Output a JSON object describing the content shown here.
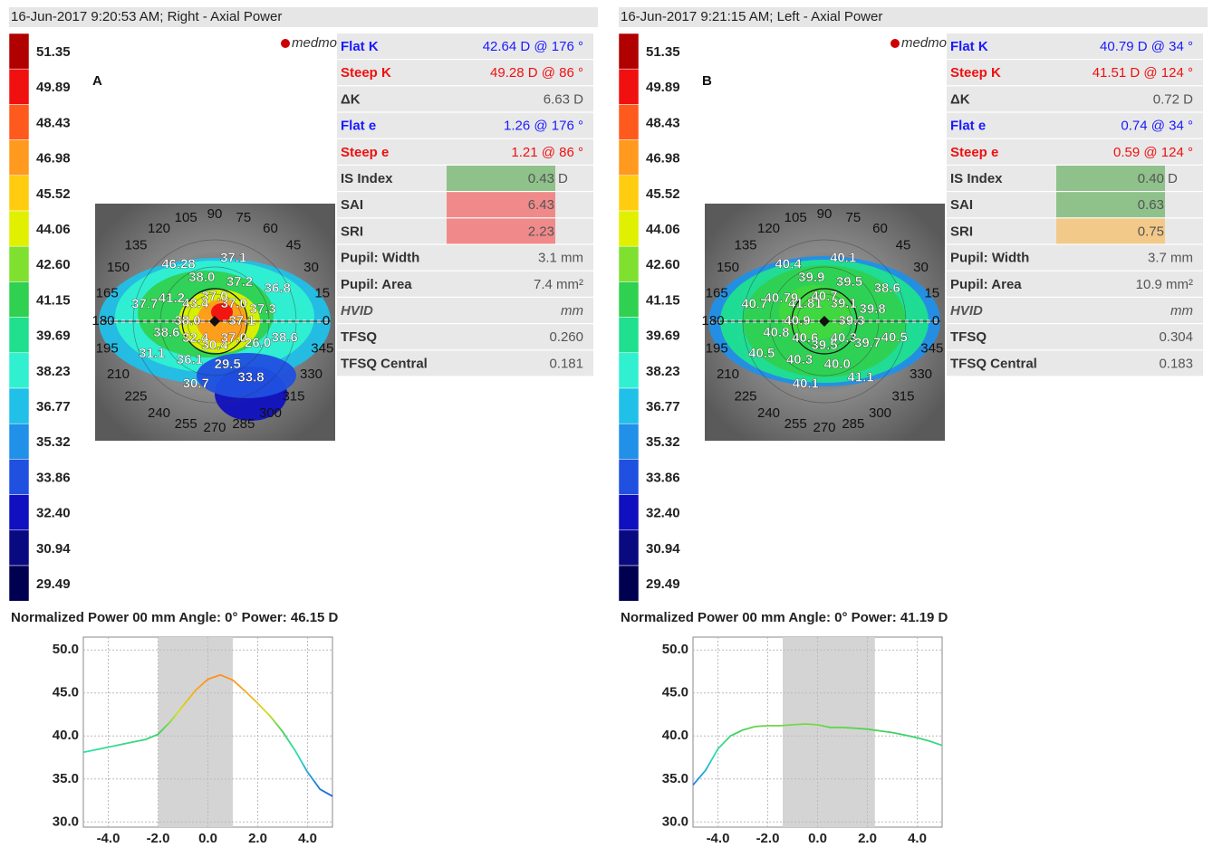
{
  "panels": [
    {
      "header": "16-Jun-2017 9:20:53 AM; Right - Axial Power",
      "letter": "A",
      "logo": "medmont",
      "scale": [
        {
          "label": "51.35",
          "color": "#b00000"
        },
        {
          "label": "49.89",
          "color": "#f01010"
        },
        {
          "label": "48.43",
          "color": "#ff5a1e"
        },
        {
          "label": "46.98",
          "color": "#ff9a1e"
        },
        {
          "label": "45.52",
          "color": "#ffcc10"
        },
        {
          "label": "44.06",
          "color": "#e0f000"
        },
        {
          "label": "42.60",
          "color": "#80e030"
        },
        {
          "label": "41.15",
          "color": "#30d050"
        },
        {
          "label": "39.69",
          "color": "#20e090"
        },
        {
          "label": "38.23",
          "color": "#30f0d0"
        },
        {
          "label": "36.77",
          "color": "#20c0e8"
        },
        {
          "label": "35.32",
          "color": "#2090e8"
        },
        {
          "label": "33.86",
          "color": "#2050e0"
        },
        {
          "label": "32.40",
          "color": "#1010c0"
        },
        {
          "label": "30.94",
          "color": "#0a0a80"
        },
        {
          "label": "29.49",
          "color": "#000050"
        }
      ],
      "rows": [
        {
          "label": "Flat K",
          "value": "42.64 D @ 176 °",
          "color": "#1a1aff"
        },
        {
          "label": "Steep K",
          "value": "49.28 D @  86 °",
          "color": "#f01010"
        },
        {
          "label": "ΔK",
          "value": "6.63 D",
          "color": "#333333"
        },
        {
          "label": "Flat e",
          "value": "1.26 @ 176 °",
          "color": "#1a1aff"
        },
        {
          "label": "Steep e",
          "value": "1.21 @  86 °",
          "color": "#f01010"
        },
        {
          "label": "IS Index",
          "value": "0.43",
          "unit": "D",
          "color": "#333333",
          "highlight": "#8fc18a"
        },
        {
          "label": "SAI",
          "value": "6.43",
          "color": "#333333",
          "highlight": "#f08a8a"
        },
        {
          "label": "SRI",
          "value": "2.23",
          "color": "#333333",
          "highlight": "#f08a8a"
        },
        {
          "label": "Pupil: Width",
          "value": "3.1 mm",
          "color": "#333333"
        },
        {
          "label": "Pupil: Area",
          "value": "7.4 mm²",
          "color": "#333333"
        },
        {
          "label": "HVID",
          "value": "mm",
          "color": "#555555",
          "italic": true
        },
        {
          "label": "TFSQ",
          "value": "0.260",
          "color": "#333333"
        },
        {
          "label": "TFSQ Central",
          "value": "0.181",
          "color": "#333333"
        }
      ],
      "map": {
        "angles": [
          0,
          15,
          30,
          45,
          60,
          75,
          90,
          105,
          120,
          135,
          150,
          165,
          180,
          195,
          210,
          225,
          240,
          255,
          270,
          285,
          300,
          315,
          330,
          345
        ],
        "values": [
          "37.1",
          "37.3",
          "36.8",
          "37.0",
          "37.2",
          "37.1",
          "37.0",
          "38.0",
          "46.28",
          "43.4",
          "41.2",
          "37.7",
          "38.0",
          "38.6",
          "31.1",
          "32.4",
          "36.1",
          "30.7",
          "30.4",
          "29.5",
          "33.8",
          "37.0",
          "26.0",
          "38.6"
        ]
      },
      "caption": "Normalized Power 00 mm Angle: 0° Power:  46.15 D"
    },
    {
      "header": "16-Jun-2017 9:21:15 AM; Left - Axial Power",
      "letter": "B",
      "logo": "medmont",
      "scale": [
        {
          "label": "51.35",
          "color": "#b00000"
        },
        {
          "label": "49.89",
          "color": "#f01010"
        },
        {
          "label": "48.43",
          "color": "#ff5a1e"
        },
        {
          "label": "46.98",
          "color": "#ff9a1e"
        },
        {
          "label": "45.52",
          "color": "#ffcc10"
        },
        {
          "label": "44.06",
          "color": "#e0f000"
        },
        {
          "label": "42.60",
          "color": "#80e030"
        },
        {
          "label": "41.15",
          "color": "#30d050"
        },
        {
          "label": "39.69",
          "color": "#20e090"
        },
        {
          "label": "38.23",
          "color": "#30f0d0"
        },
        {
          "label": "36.77",
          "color": "#20c0e8"
        },
        {
          "label": "35.32",
          "color": "#2090e8"
        },
        {
          "label": "33.86",
          "color": "#2050e0"
        },
        {
          "label": "32.40",
          "color": "#1010c0"
        },
        {
          "label": "30.94",
          "color": "#0a0a80"
        },
        {
          "label": "29.49",
          "color": "#000050"
        }
      ],
      "rows": [
        {
          "label": "Flat K",
          "value": "40.79 D @  34 °",
          "color": "#1a1aff"
        },
        {
          "label": "Steep K",
          "value": "41.51 D @ 124 °",
          "color": "#f01010"
        },
        {
          "label": "ΔK",
          "value": "0.72 D",
          "color": "#333333"
        },
        {
          "label": "Flat e",
          "value": "0.74 @  34 °",
          "color": "#1a1aff"
        },
        {
          "label": "Steep e",
          "value": "0.59 @ 124 °",
          "color": "#f01010"
        },
        {
          "label": "IS Index",
          "value": "0.40",
          "unit": "D",
          "color": "#333333",
          "highlight": "#8fc18a"
        },
        {
          "label": "SAI",
          "value": "0.63",
          "color": "#333333",
          "highlight": "#8fc18a"
        },
        {
          "label": "SRI",
          "value": "0.75",
          "color": "#333333",
          "highlight": "#f3c98a"
        },
        {
          "label": "Pupil: Width",
          "value": "3.7 mm",
          "color": "#333333"
        },
        {
          "label": "Pupil: Area",
          "value": "10.9 mm²",
          "color": "#333333"
        },
        {
          "label": "HVID",
          "value": "mm",
          "color": "#555555",
          "italic": true
        },
        {
          "label": "TFSQ",
          "value": "0.304",
          "color": "#333333"
        },
        {
          "label": "TFSQ Central",
          "value": "0.183",
          "color": "#333333"
        }
      ],
      "map": {
        "angles": [
          0,
          15,
          30,
          45,
          60,
          75,
          90,
          105,
          120,
          135,
          150,
          165,
          180,
          195,
          210,
          225,
          240,
          255,
          270,
          285,
          300,
          315,
          330,
          345
        ],
        "values": [
          "39.3",
          "39.8",
          "38.6",
          "39.1",
          "39.5",
          "40.1",
          "40.7",
          "39.9",
          "40.4",
          "41.81",
          "40.79",
          "40.7",
          "40.9",
          "40.8",
          "40.5",
          "40.6",
          "40.3",
          "40.1",
          "39.5",
          "40.0",
          "41.1",
          "40.3",
          "39.7",
          "40.5"
        ]
      },
      "caption": "Normalized Power 00 mm Angle: 0° Power:  41.19 D"
    }
  ],
  "chart_data": [
    {
      "type": "line",
      "color": "#30c070",
      "grid": true,
      "shade": [
        -2.0,
        1.0
      ],
      "x": [
        -5.0,
        -4.5,
        -4.0,
        -3.5,
        -3.0,
        -2.5,
        -2.0,
        -1.5,
        -1.0,
        -0.5,
        0.0,
        0.5,
        1.0,
        1.5,
        2.0,
        2.5,
        3.0,
        3.5,
        4.0,
        4.5,
        5.0
      ],
      "values": [
        38.1,
        38.4,
        38.7,
        39.0,
        39.3,
        39.6,
        40.2,
        41.7,
        43.5,
        45.3,
        46.6,
        47.1,
        46.5,
        45.2,
        43.8,
        42.3,
        40.5,
        38.3,
        35.8,
        33.8,
        33.0
      ],
      "xlim": [
        -5.0,
        5.0
      ],
      "ylim": [
        29.4,
        51.5
      ],
      "xticks": [
        {
          "value": -4,
          "label": "-4.0"
        },
        {
          "value": -2,
          "label": "-2.0"
        },
        {
          "value": 0,
          "label": "0.0"
        },
        {
          "value": 2,
          "label": "2.0"
        },
        {
          "value": 4,
          "label": "4.0"
        }
      ],
      "yticks": [
        {
          "value": 30,
          "label": "30.0"
        },
        {
          "value": 35,
          "label": "35.0"
        },
        {
          "value": 40,
          "label": "40.0"
        },
        {
          "value": 45,
          "label": "45.0"
        },
        {
          "value": 50,
          "label": "50.0"
        }
      ]
    },
    {
      "type": "line",
      "color": "#30c070",
      "grid": true,
      "shade": [
        -1.4,
        2.3
      ],
      "x": [
        -5.0,
        -4.5,
        -4.0,
        -3.5,
        -3.0,
        -2.5,
        -2.0,
        -1.5,
        -1.0,
        -0.5,
        0.0,
        0.5,
        1.0,
        1.5,
        2.0,
        2.5,
        3.0,
        3.5,
        4.0,
        4.5,
        5.0
      ],
      "values": [
        34.3,
        36.0,
        38.5,
        40.0,
        40.7,
        41.1,
        41.2,
        41.2,
        41.3,
        41.4,
        41.3,
        41.0,
        41.0,
        40.9,
        40.8,
        40.6,
        40.4,
        40.1,
        39.8,
        39.4,
        38.9
      ],
      "xlim": [
        -5.0,
        5.0
      ],
      "ylim": [
        29.4,
        51.5
      ],
      "xticks": [
        {
          "value": -4,
          "label": "-4.0"
        },
        {
          "value": -2,
          "label": "-2.0"
        },
        {
          "value": 0,
          "label": "0.0"
        },
        {
          "value": 2,
          "label": "2.0"
        },
        {
          "value": 4,
          "label": "4.0"
        }
      ],
      "yticks": [
        {
          "value": 30,
          "label": "30.0"
        },
        {
          "value": 35,
          "label": "35.0"
        },
        {
          "value": 40,
          "label": "40.0"
        },
        {
          "value": 45,
          "label": "45.0"
        },
        {
          "value": 50,
          "label": "50.0"
        }
      ]
    }
  ]
}
